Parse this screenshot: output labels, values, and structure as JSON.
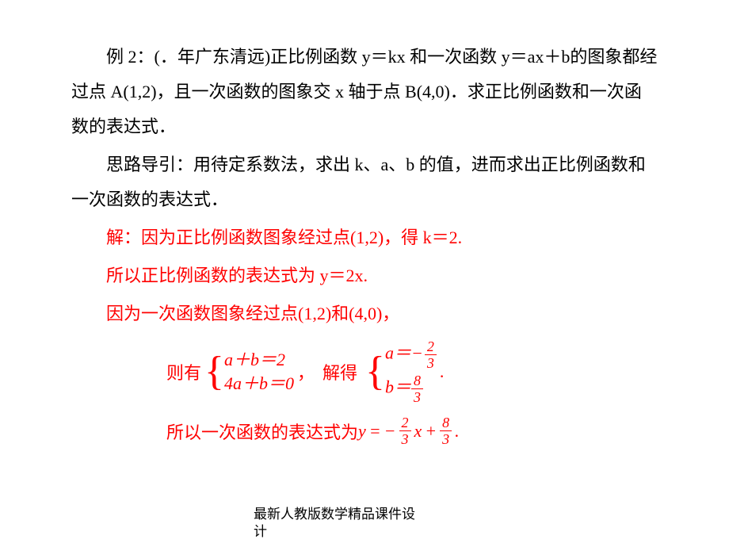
{
  "colors": {
    "text": "#000000",
    "solution": "#ff0000",
    "background": "#ffffff"
  },
  "typography": {
    "body_fontsize": 22,
    "footer_fontsize": 17,
    "line_height": 2.0
  },
  "para1": "例 2：(．年广东清远)正比例函数 y＝kx 和一次函数 y＝ax＋b的图象都经过点 A(1,2)，且一次函数的图象交 x 轴于点 B(4,0)．求正比例函数和一次函数的表达式．",
  "para2": "思路导引：用待定系数法，求出 k、a、b 的值，进而求出正比例函数和一次函数的表达式．",
  "sol1": "解：因为正比例函数图象经过点(1,2)，得 k＝2.",
  "sol2": "所以正比例函数的表达式为 y＝2x.",
  "sol3": "因为一次函数图象经过点(1,2)和(4,0)，",
  "system": {
    "lead": "则有",
    "eq1": "a＋b＝2",
    "eq2": "4a＋b＝0",
    "sep": "，",
    "solve_label": "解得",
    "res1_lhs": "a＝",
    "res1_num": "2",
    "res1_den": "3",
    "res1_neg": "−",
    "res2_lhs": "b＝",
    "res2_num": "8",
    "res2_den": "3",
    "period": "."
  },
  "final": {
    "text": "所以一次函数的表达式为",
    "y": "y",
    "eq": " = ",
    "neg": "−",
    "a_num": "2",
    "a_den": "3",
    "x": "x",
    "plus": " + ",
    "b_num": "8",
    "b_den": "3",
    "period": "."
  },
  "footer_l1": "最新人教版数学精品课件设",
  "footer_l2": "计"
}
